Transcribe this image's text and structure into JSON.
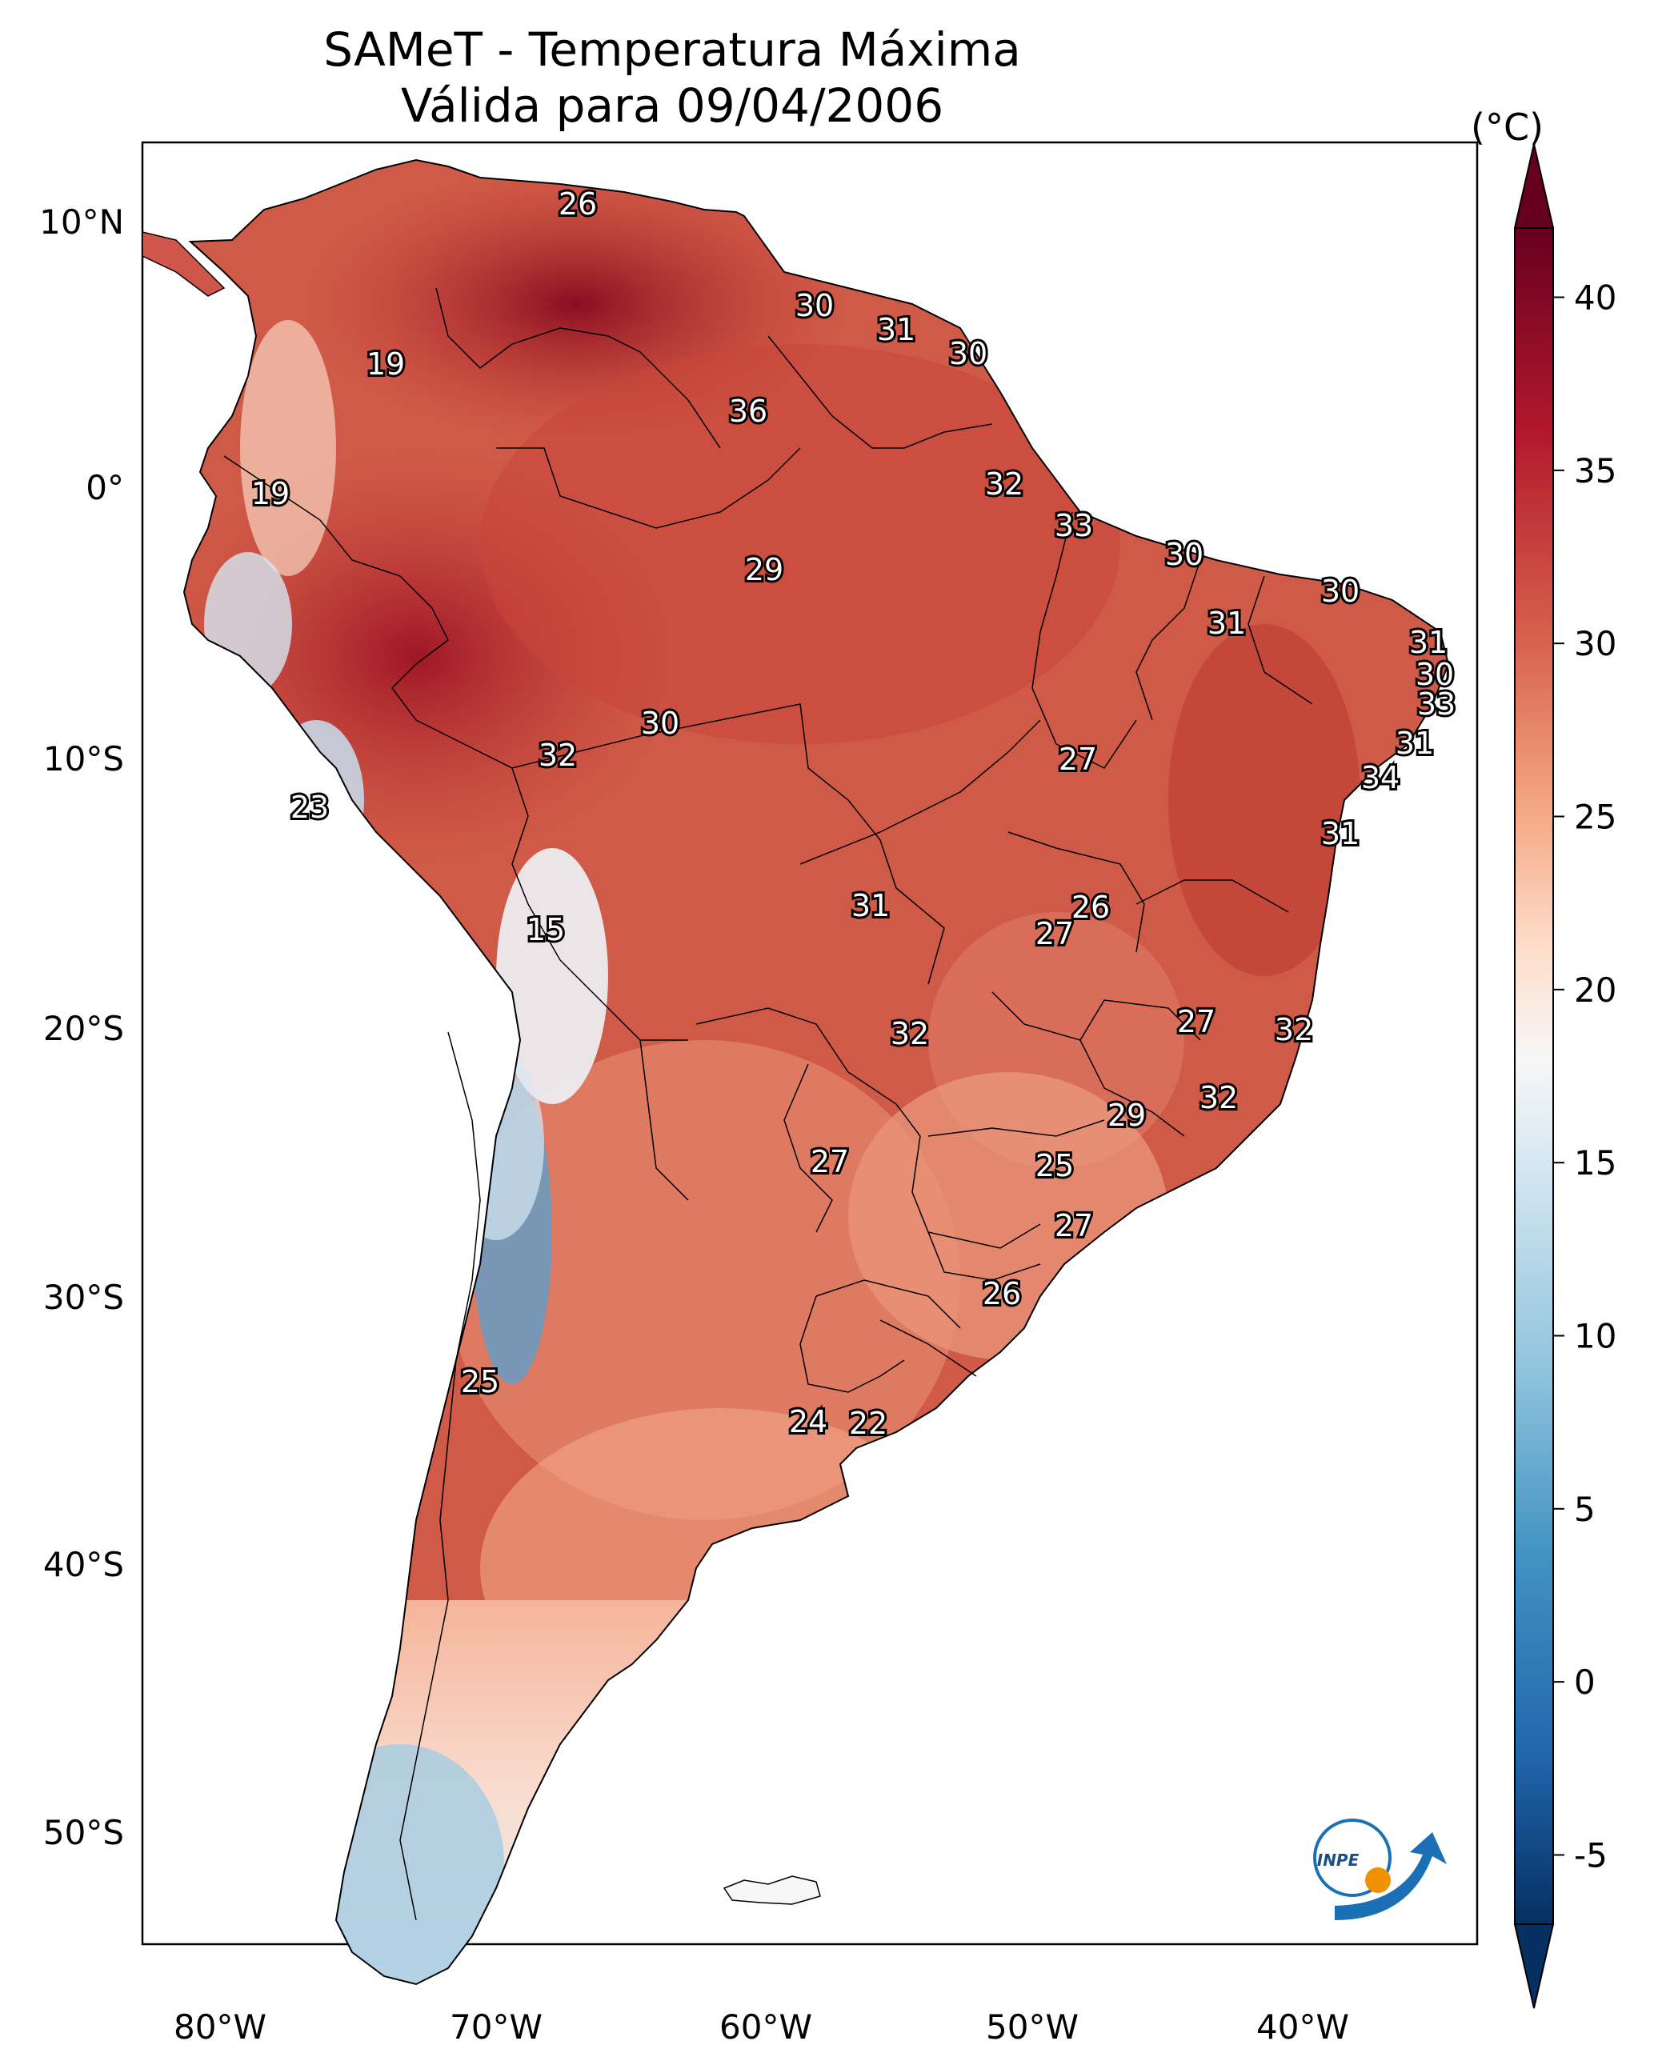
{
  "title": {
    "line1": "SAMeT - Temperatura Máxima",
    "line2": "Válida para 09/04/2006"
  },
  "colorbar": {
    "unit": "(°C)",
    "ticks": [
      "40",
      "35",
      "30",
      "25",
      "20",
      "15",
      "10",
      "5",
      "0",
      "-5"
    ],
    "min": -7,
    "max": 42,
    "colors": [
      "#053061",
      "#2166ac",
      "#4393c3",
      "#92c5de",
      "#d1e5f0",
      "#f7f7f7",
      "#fddbc7",
      "#f4a582",
      "#d6604d",
      "#b2182b",
      "#67001f"
    ]
  },
  "axes": {
    "lon_ticks": [
      "80°W",
      "70°W",
      "60°W",
      "50°W",
      "40°W"
    ],
    "lat_ticks": [
      "10°N",
      "0°",
      "10°S",
      "20°S",
      "30°S",
      "40°S",
      "50°S"
    ]
  },
  "labels": [
    "26",
    "30",
    "31",
    "30",
    "19",
    "36",
    "19",
    "32",
    "33",
    "29",
    "30",
    "30",
    "31",
    "31",
    "30",
    "33",
    "30",
    "32",
    "31",
    "27",
    "23",
    "34",
    "31",
    "31",
    "26",
    "15",
    "27",
    "27",
    "32",
    "32",
    "32",
    "29",
    "27",
    "25",
    "27",
    "26",
    "25",
    "24",
    "22"
  ],
  "logo": {
    "text": "INPE"
  }
}
